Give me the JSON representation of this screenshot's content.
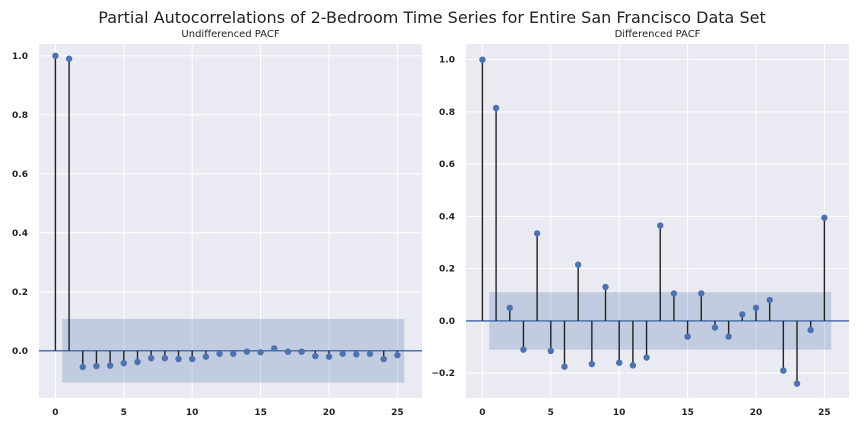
{
  "figure": {
    "suptitle": "Partial Autocorrelations of 2-Bedroom Time Series for Entire San Francisco Data Set"
  },
  "colors": {
    "panel_bg": "#eaeaf2",
    "grid": "#ffffff",
    "stem": "#222222",
    "marker": "#4c72b0",
    "zero_line": "#4c72b0",
    "confidence_band": "#4c72b0"
  },
  "chart_data": [
    {
      "type": "scatter",
      "title": "Undifferenced PACF",
      "xlabel": "",
      "ylabel": "",
      "lags": [
        0,
        1,
        2,
        3,
        4,
        5,
        6,
        7,
        8,
        9,
        10,
        11,
        12,
        13,
        14,
        15,
        16,
        17,
        18,
        19,
        20,
        21,
        22,
        23,
        24,
        25
      ],
      "values": [
        1.0,
        0.99,
        -0.055,
        -0.052,
        -0.05,
        -0.042,
        -0.038,
        -0.025,
        -0.025,
        -0.028,
        -0.028,
        -0.02,
        -0.01,
        -0.01,
        -0.003,
        -0.005,
        0.008,
        -0.003,
        -0.003,
        -0.018,
        -0.02,
        -0.01,
        -0.012,
        -0.01,
        -0.028,
        -0.015
      ],
      "confidence_interval": {
        "lower": -0.108,
        "upper": 0.108,
        "x_start": 0.5,
        "x_end": 25.5
      },
      "xlim": [
        -1.2,
        26.8
      ],
      "ylim": [
        -0.16,
        1.04
      ],
      "x_ticks": [
        0,
        5,
        10,
        15,
        20,
        25
      ],
      "x_tick_labels": [
        "0",
        "5",
        "10",
        "15",
        "20",
        "25"
      ],
      "y_ticks": [
        0.0,
        0.2,
        0.4,
        0.6,
        0.8,
        1.0
      ],
      "y_tick_labels": [
        "0.0",
        "0.2",
        "0.4",
        "0.6",
        "0.8",
        "1.0"
      ],
      "grid": true
    },
    {
      "type": "scatter",
      "title": "Differenced PACF",
      "xlabel": "",
      "ylabel": "",
      "lags": [
        0,
        1,
        2,
        3,
        4,
        5,
        6,
        7,
        8,
        9,
        10,
        11,
        12,
        13,
        14,
        15,
        16,
        17,
        18,
        19,
        20,
        21,
        22,
        23,
        24,
        25
      ],
      "values": [
        1.0,
        0.815,
        0.05,
        -0.11,
        0.335,
        -0.115,
        -0.175,
        0.215,
        -0.165,
        0.13,
        -0.16,
        -0.17,
        -0.14,
        0.365,
        0.105,
        -0.06,
        0.105,
        -0.025,
        -0.06,
        0.025,
        0.05,
        0.08,
        -0.19,
        -0.24,
        -0.035,
        0.395
      ],
      "confidence_interval": {
        "lower": -0.11,
        "upper": 0.11,
        "x_start": 0.5,
        "x_end": 25.5
      },
      "xlim": [
        -1.2,
        26.8
      ],
      "ylim": [
        -0.295,
        1.06
      ],
      "x_ticks": [
        0,
        5,
        10,
        15,
        20,
        25
      ],
      "x_tick_labels": [
        "0",
        "5",
        "10",
        "15",
        "20",
        "25"
      ],
      "y_ticks": [
        -0.2,
        0.0,
        0.2,
        0.4,
        0.6,
        0.8,
        1.0
      ],
      "y_tick_labels": [
        "−0.2",
        "0.0",
        "0.2",
        "0.4",
        "0.6",
        "0.8",
        "1.0"
      ],
      "grid": true
    }
  ]
}
